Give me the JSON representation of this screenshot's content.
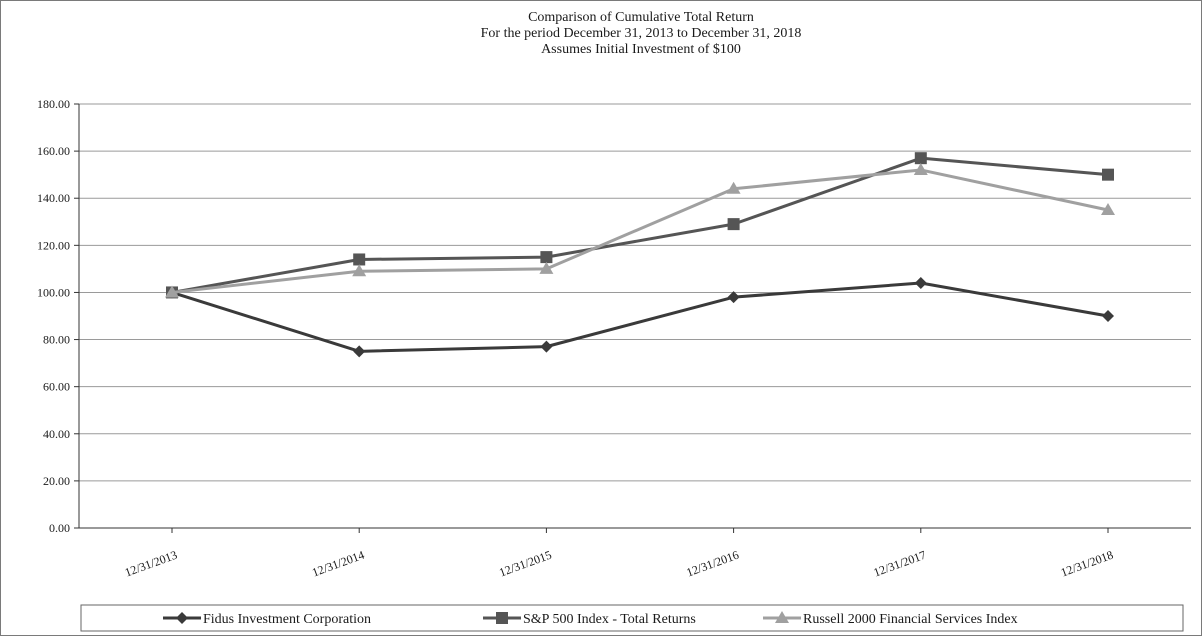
{
  "chart_data": {
    "type": "line",
    "title": [
      "Comparison of Cumulative Total Return",
      "For the period December 31, 2013 to December 31, 2018",
      "Assumes Initial Investment of $100"
    ],
    "xlabel": "",
    "ylabel": "",
    "categories": [
      "12/31/2013",
      "12/31/2014",
      "12/31/2015",
      "12/31/2016",
      "12/31/2017",
      "12/31/2018"
    ],
    "ylim": [
      0,
      180
    ],
    "yticks": [
      0,
      20,
      40,
      60,
      80,
      100,
      120,
      140,
      160,
      180
    ],
    "ytick_labels": [
      "0.00",
      "20.00",
      "40.00",
      "60.00",
      "80.00",
      "100.00",
      "120.00",
      "140.00",
      "160.00",
      "180.00"
    ],
    "grid": "horizontal",
    "legend_position": "bottom",
    "series": [
      {
        "name": "Fidus Investment Corporation",
        "values": [
          100,
          75,
          77,
          98,
          104,
          90
        ],
        "color": "#3a3a3a",
        "marker": "diamond"
      },
      {
        "name": "S&P 500 Index - Total Returns",
        "values": [
          100,
          114,
          115,
          129,
          157,
          150
        ],
        "color": "#555555",
        "marker": "square"
      },
      {
        "name": "Russell 2000 Financial Services Index",
        "values": [
          100,
          109,
          110,
          144,
          152,
          135
        ],
        "color": "#a0a0a0",
        "marker": "triangle"
      }
    ]
  }
}
